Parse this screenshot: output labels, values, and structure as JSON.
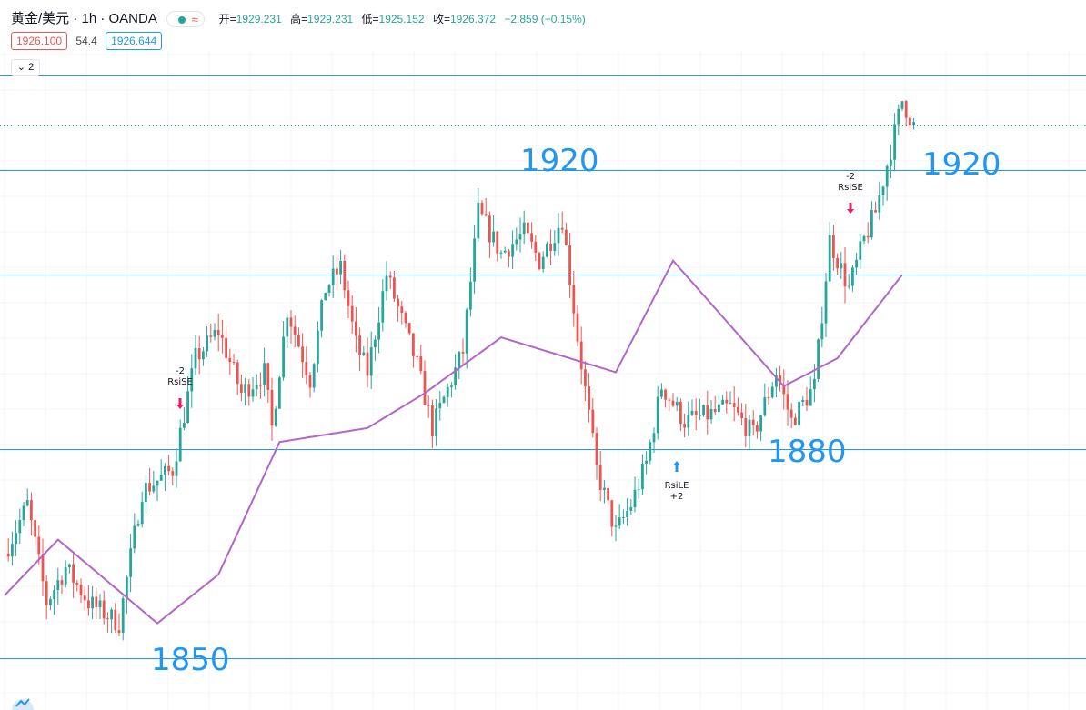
{
  "header": {
    "symbol": "黄金/美元 · 1h · OANDA",
    "status_icon": "circle-dot-icon",
    "wave_icon": "≈",
    "ohlc": {
      "open_label": "开=",
      "open": "1929.231",
      "high_label": "高=",
      "high": "1929.231",
      "low_label": "低=",
      "low": "1925.152",
      "close_label": "收=",
      "close": "1926.372",
      "change": "−2.859 (−0.15%)"
    }
  },
  "quote": {
    "bid": "1926.100",
    "spread": "54.4",
    "ask": "1926.644"
  },
  "collapse_button": {
    "label": "2",
    "icon": "chevron-down-icon"
  },
  "levels": [
    {
      "label": "1920",
      "price": 1920
    },
    {
      "label": "1920",
      "price": 1920
    },
    {
      "label": "1880",
      "price": 1880
    },
    {
      "label": "1850",
      "price": 1850
    }
  ],
  "signals": [
    {
      "label": "RsiSE",
      "qty": "-2",
      "type": "sell"
    },
    {
      "label": "RsiLE",
      "qty": "+2",
      "type": "buy"
    },
    {
      "label": "RsiSE",
      "qty": "-2",
      "type": "sell"
    }
  ],
  "colors": {
    "up": "#26a69a",
    "down": "#ef5350",
    "ma": "#b266c9",
    "level": "#2196f3",
    "last": "#26a69a"
  },
  "chart_data": {
    "type": "candlestick",
    "symbol": "黄金/美元",
    "interval": "1h",
    "y_range": [
      1845,
      1935
    ],
    "horizontal_levels": [
      1933.5,
      1920,
      1905,
      1880,
      1850
    ],
    "last_price": 1926.37,
    "moving_average_anchors": [
      [
        0,
        1859
      ],
      [
        14,
        1867
      ],
      [
        40,
        1855
      ],
      [
        56,
        1862
      ],
      [
        72,
        1881
      ],
      [
        95,
        1883
      ],
      [
        110,
        1888
      ],
      [
        130,
        1896
      ],
      [
        160,
        1891
      ],
      [
        175,
        1907
      ],
      [
        204,
        1889
      ],
      [
        218,
        1893
      ],
      [
        235,
        1905
      ]
    ],
    "price_path_anchors": [
      [
        0,
        1865
      ],
      [
        6,
        1872
      ],
      [
        11,
        1858
      ],
      [
        16,
        1863
      ],
      [
        22,
        1858
      ],
      [
        30,
        1855
      ],
      [
        36,
        1874
      ],
      [
        44,
        1877
      ],
      [
        50,
        1893
      ],
      [
        56,
        1897
      ],
      [
        62,
        1888
      ],
      [
        68,
        1891
      ],
      [
        70,
        1883
      ],
      [
        74,
        1900
      ],
      [
        80,
        1890
      ],
      [
        84,
        1903
      ],
      [
        88,
        1906
      ],
      [
        92,
        1895
      ],
      [
        95,
        1891
      ],
      [
        100,
        1905
      ],
      [
        108,
        1892
      ],
      [
        112,
        1883
      ],
      [
        120,
        1894
      ],
      [
        124,
        1914
      ],
      [
        130,
        1908
      ],
      [
        136,
        1911
      ],
      [
        140,
        1907
      ],
      [
        146,
        1913
      ],
      [
        150,
        1896
      ],
      [
        155,
        1877
      ],
      [
        160,
        1868
      ],
      [
        164,
        1872
      ],
      [
        168,
        1878
      ],
      [
        172,
        1889
      ],
      [
        178,
        1884
      ],
      [
        185,
        1885
      ],
      [
        190,
        1886
      ],
      [
        196,
        1882
      ],
      [
        202,
        1891
      ],
      [
        206,
        1884
      ],
      [
        212,
        1889
      ],
      [
        216,
        1910
      ],
      [
        221,
        1903
      ],
      [
        225,
        1910
      ],
      [
        228,
        1914
      ],
      [
        232,
        1923
      ],
      [
        235,
        1930
      ],
      [
        238,
        1926.4
      ]
    ]
  }
}
